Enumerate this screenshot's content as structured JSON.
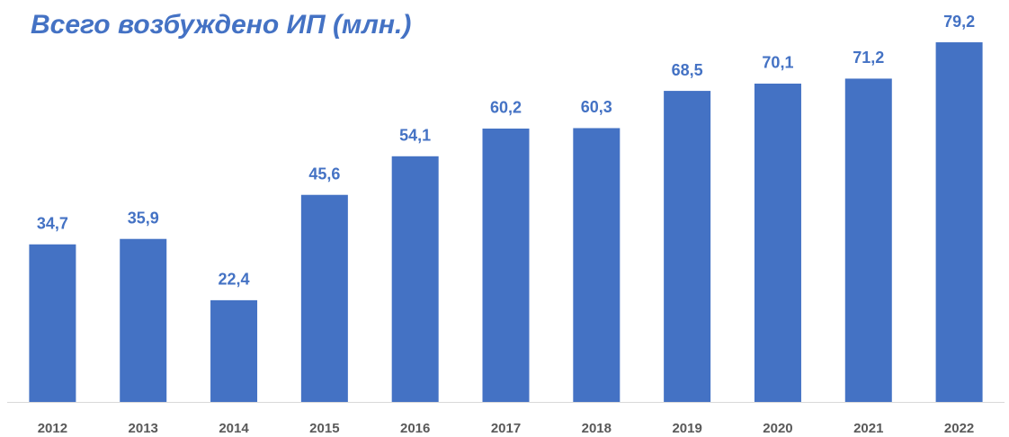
{
  "chart_data": {
    "type": "bar",
    "title": "Всего возбуждено ИП (млн.)",
    "categories": [
      "2012",
      "2013",
      "2014",
      "2015",
      "2016",
      "2017",
      "2018",
      "2019",
      "2020",
      "2021",
      "2022"
    ],
    "values": [
      34.7,
      35.9,
      22.4,
      45.6,
      54.1,
      60.2,
      60.3,
      68.5,
      70.1,
      71.2,
      79.2
    ],
    "value_labels": [
      "34,7",
      "35,9",
      "22,4",
      "45,6",
      "54,1",
      "60,2",
      "60,3",
      "68,5",
      "70,1",
      "71,2",
      "79,2"
    ],
    "color": "#4472c4",
    "ylim": [
      0,
      80
    ],
    "grid": false
  }
}
